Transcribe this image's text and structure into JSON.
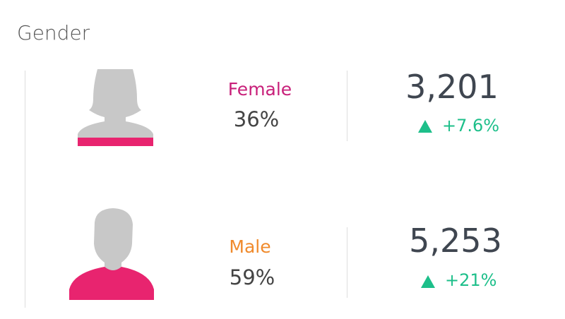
{
  "header": {
    "title": "Gender"
  },
  "rows": [
    {
      "label": "Female",
      "percent": "36%",
      "count": "3,201",
      "change": "+7.6%"
    },
    {
      "label": "Male",
      "percent": "59%",
      "count": "5,253",
      "change": "+21%"
    }
  ]
}
